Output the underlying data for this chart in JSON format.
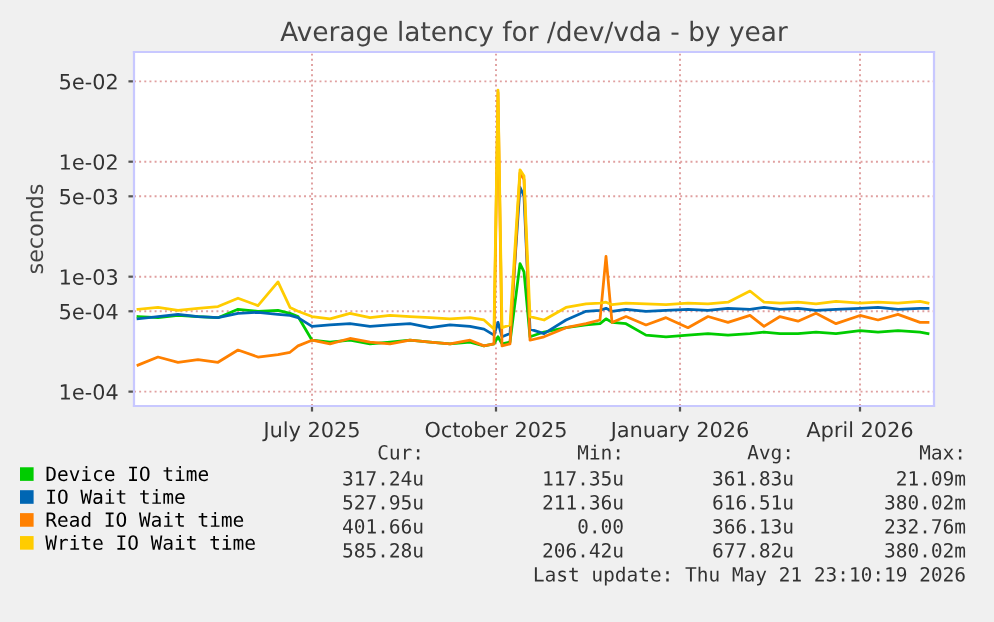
{
  "chart_data": {
    "type": "line",
    "title": "Average latency for /dev/vda - by year",
    "ylabel": "seconds",
    "log": "y",
    "grid": true,
    "legend": "bottom",
    "line_style": "solid",
    "marker": "none",
    "xlim": [
      "2025-04-03",
      "2026-05-08"
    ],
    "xticks": [
      {
        "value": "2025-07-01",
        "label": "July 2025"
      },
      {
        "value": "2025-10-01",
        "label": "October 2025"
      },
      {
        "value": "2026-01-01",
        "label": "January 2026"
      },
      {
        "value": "2026-04-01",
        "label": "April 2026"
      }
    ],
    "ylim": [
      7.5e-05,
      0.09
    ],
    "yticks": [
      {
        "value": 0.0001,
        "label": "1e-04"
      },
      {
        "value": 0.0005,
        "label": "5e-04"
      },
      {
        "value": 0.001,
        "label": "1e-03"
      },
      {
        "value": 0.005,
        "label": "5e-03"
      },
      {
        "value": 0.01,
        "label": "1e-02"
      },
      {
        "value": 0.05,
        "label": "5e-02"
      }
    ],
    "x": [
      "2025-04-05",
      "2025-04-15",
      "2025-04-25",
      "2025-05-05",
      "2025-05-15",
      "2025-05-25",
      "2025-06-04",
      "2025-06-14",
      "2025-06-20",
      "2025-06-24",
      "2025-07-01",
      "2025-07-10",
      "2025-07-20",
      "2025-07-30",
      "2025-08-09",
      "2025-08-19",
      "2025-08-29",
      "2025-09-08",
      "2025-09-18",
      "2025-09-25",
      "2025-09-30",
      "2025-10-02",
      "2025-10-04",
      "2025-10-08",
      "2025-10-13",
      "2025-10-15",
      "2025-10-18",
      "2025-10-25",
      "2025-11-05",
      "2025-11-15",
      "2025-11-22",
      "2025-11-25",
      "2025-11-28",
      "2025-12-05",
      "2025-12-15",
      "2025-12-25",
      "2026-01-05",
      "2026-01-15",
      "2026-01-25",
      "2026-02-05",
      "2026-02-12",
      "2026-02-20",
      "2026-03-01",
      "2026-03-10",
      "2026-03-20",
      "2026-04-01",
      "2026-04-10",
      "2026-04-20",
      "2026-05-01",
      "2026-05-05"
    ],
    "series": [
      {
        "name": "Device IO time",
        "color": "#00cc00",
        "values": [
          0.00045,
          0.00044,
          0.00046,
          0.00045,
          0.00044,
          0.00052,
          0.0005,
          0.00051,
          0.00048,
          0.00045,
          0.00028,
          0.00027,
          0.00028,
          0.00026,
          0.00027,
          0.00028,
          0.00027,
          0.00026,
          0.00027,
          0.00025,
          0.00026,
          0.0003,
          0.00026,
          0.00027,
          0.0013,
          0.0011,
          0.0003,
          0.00033,
          0.00036,
          0.00038,
          0.00039,
          0.00043,
          0.0004,
          0.00039,
          0.00031,
          0.0003,
          0.00031,
          0.00032,
          0.00031,
          0.00032,
          0.00033,
          0.00032,
          0.00032,
          0.00033,
          0.00032,
          0.00034,
          0.00033,
          0.00034,
          0.00033,
          0.00032
        ]
      },
      {
        "name": "IO Wait time",
        "color": "#0066b3",
        "values": [
          0.00043,
          0.00045,
          0.00047,
          0.00045,
          0.00044,
          0.00048,
          0.00049,
          0.00047,
          0.00046,
          0.00044,
          0.00037,
          0.00038,
          0.00039,
          0.00037,
          0.00038,
          0.00039,
          0.00036,
          0.00038,
          0.00037,
          0.00035,
          0.00031,
          0.0004,
          0.0003,
          0.00032,
          0.006,
          0.005,
          0.00035,
          0.00032,
          0.00042,
          0.0005,
          0.00051,
          0.00053,
          0.0005,
          0.00052,
          0.0005,
          0.00051,
          0.00052,
          0.00051,
          0.00053,
          0.00052,
          0.00054,
          0.00052,
          0.00053,
          0.00051,
          0.00052,
          0.00053,
          0.00054,
          0.00052,
          0.00053,
          0.00053
        ]
      },
      {
        "name": "Read IO Wait time",
        "color": "#ff8000",
        "values": [
          0.00017,
          0.0002,
          0.00018,
          0.00019,
          0.00018,
          0.00023,
          0.0002,
          0.00021,
          0.00022,
          0.00025,
          0.00028,
          0.00026,
          0.00029,
          0.00027,
          0.00026,
          0.00028,
          0.00027,
          0.00026,
          0.00028,
          0.00025,
          0.00026,
          0.04,
          0.00025,
          0.00026,
          0.008,
          0.007,
          0.00028,
          0.0003,
          0.00036,
          0.00039,
          0.00042,
          0.0015,
          0.0004,
          0.00045,
          0.00038,
          0.00044,
          0.00036,
          0.00045,
          0.0004,
          0.00046,
          0.00037,
          0.00045,
          0.00041,
          0.00048,
          0.00039,
          0.00046,
          0.00042,
          0.00047,
          0.0004,
          0.0004
        ]
      },
      {
        "name": "Write IO Wait time",
        "color": "#ffcc00",
        "values": [
          0.00052,
          0.00054,
          0.00051,
          0.00053,
          0.00055,
          0.00065,
          0.00056,
          0.0009,
          0.00054,
          0.0005,
          0.00045,
          0.00043,
          0.00048,
          0.00044,
          0.00046,
          0.00045,
          0.00044,
          0.00043,
          0.00044,
          0.00042,
          0.00035,
          0.042,
          0.00036,
          0.00038,
          0.0085,
          0.0075,
          0.00045,
          0.00042,
          0.00054,
          0.00058,
          0.00059,
          0.0006,
          0.00057,
          0.00059,
          0.00058,
          0.00057,
          0.00059,
          0.00058,
          0.0006,
          0.00075,
          0.0006,
          0.00059,
          0.0006,
          0.00058,
          0.00061,
          0.00059,
          0.0006,
          0.00059,
          0.00061,
          0.00059
        ]
      }
    ],
    "annotations": [
      "Cur:",
      "Min:",
      "Avg:",
      "Max:",
      "317.24u",
      "117.35u",
      "361.83u",
      "21.09m",
      "527.95u",
      "211.36u",
      "616.51u",
      "380.02m",
      "401.66u",
      "0.00",
      "366.13u",
      "232.76m",
      "585.28u",
      "206.42u",
      "677.82u",
      "380.02m",
      "Last update: Thu May 21 23:10:19 2026"
    ]
  }
}
